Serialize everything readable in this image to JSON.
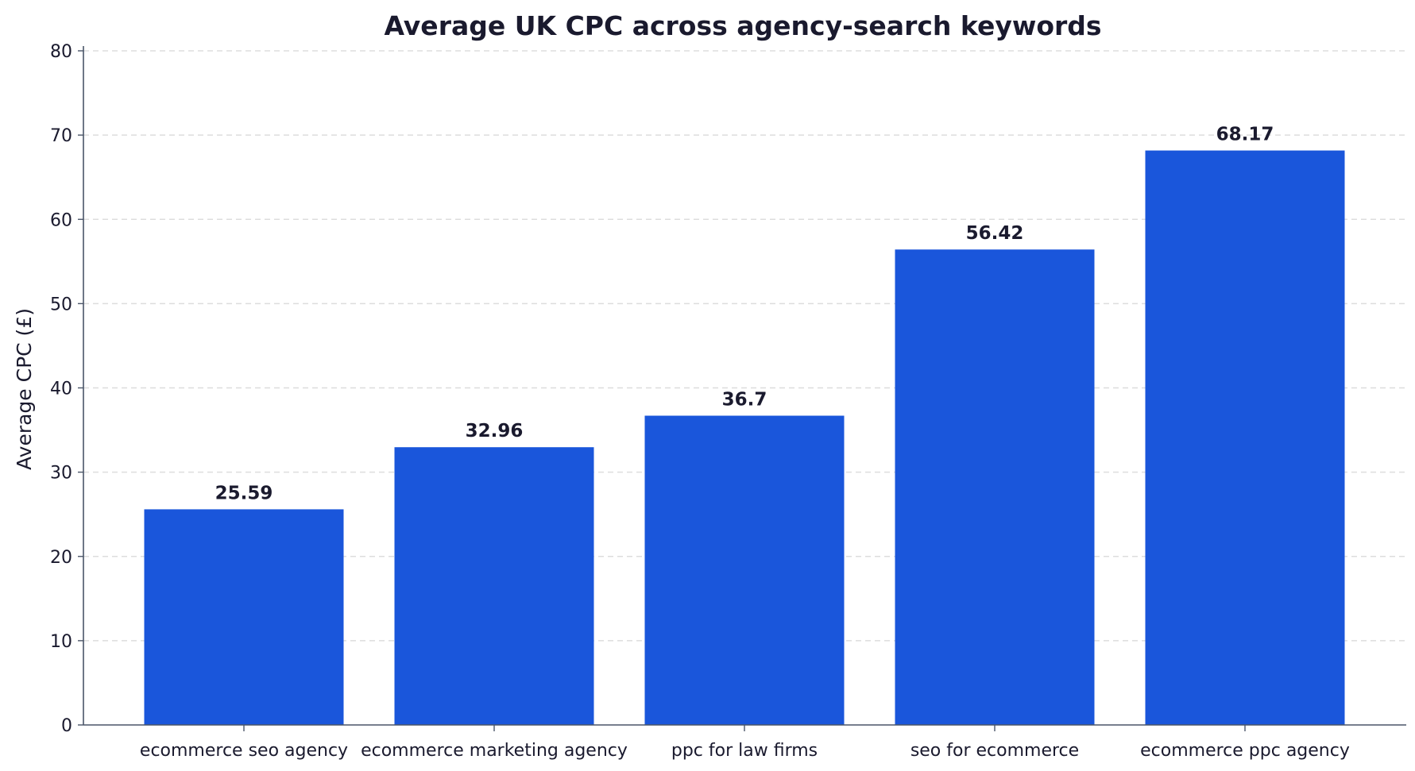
{
  "chart_data": {
    "type": "bar",
    "title": "Average UK CPC across agency-search keywords",
    "xlabel": "",
    "ylabel": "Average CPC (£)",
    "categories": [
      "ecommerce seo agency",
      "ecommerce marketing agency",
      "ppc for law firms",
      "seo for ecommerce",
      "ecommerce ppc agency"
    ],
    "values": [
      25.59,
      32.96,
      36.7,
      56.42,
      68.17
    ],
    "data_labels": [
      "25.59",
      "32.96",
      "36.7",
      "56.42",
      "68.17"
    ],
    "ylim": [
      0,
      80
    ],
    "yticks": [
      0,
      10,
      20,
      30,
      40,
      50,
      60,
      70,
      80
    ],
    "grid": "horizontal dashed",
    "legend": "none",
    "colors": {
      "bar": "#1a56db",
      "text": "#1a1a2e",
      "axis": "#4a5568",
      "grid": "#dddddd"
    }
  }
}
